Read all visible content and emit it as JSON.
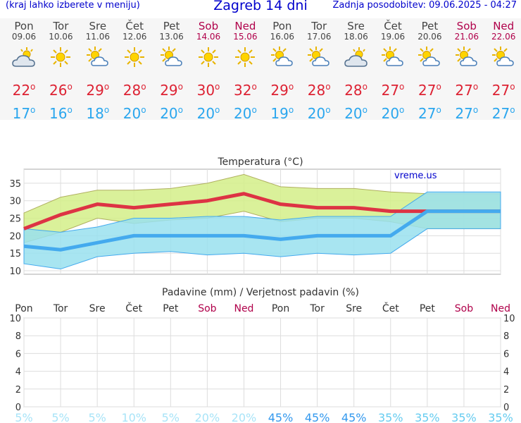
{
  "header": {
    "menu_hint": "(kraj lahko izberete v meniju)",
    "title": "Zagreb 14 dni",
    "updated": "Zadnja posodobitev: 09.06.2025 - 04:27"
  },
  "days": [
    {
      "name": "Pon",
      "date": "09.06",
      "weekend": false,
      "icon": "partly-cloudy-icon",
      "tmax": "22",
      "tmin": "17"
    },
    {
      "name": "Tor",
      "date": "10.06",
      "weekend": false,
      "icon": "sun-icon",
      "tmax": "26",
      "tmin": "16"
    },
    {
      "name": "Sre",
      "date": "11.06",
      "weekend": false,
      "icon": "sun-cloud-icon",
      "tmax": "29",
      "tmin": "18"
    },
    {
      "name": "Čet",
      "date": "12.06",
      "weekend": false,
      "icon": "sun-icon",
      "tmax": "28",
      "tmin": "20"
    },
    {
      "name": "Pet",
      "date": "13.06",
      "weekend": false,
      "icon": "sun-cloud-icon",
      "tmax": "29",
      "tmin": "20"
    },
    {
      "name": "Sob",
      "date": "14.06",
      "weekend": true,
      "icon": "sun-icon",
      "tmax": "30",
      "tmin": "20"
    },
    {
      "name": "Ned",
      "date": "15.06",
      "weekend": true,
      "icon": "sun-icon",
      "tmax": "32",
      "tmin": "20"
    },
    {
      "name": "Pon",
      "date": "16.06",
      "weekend": false,
      "icon": "sun-cloud-icon",
      "tmax": "29",
      "tmin": "19"
    },
    {
      "name": "Tor",
      "date": "17.06",
      "weekend": false,
      "icon": "sun-cloud-icon",
      "tmax": "28",
      "tmin": "20"
    },
    {
      "name": "Sre",
      "date": "18.06",
      "weekend": false,
      "icon": "partly-cloudy-icon",
      "tmax": "28",
      "tmin": "20"
    },
    {
      "name": "Čet",
      "date": "19.06",
      "weekend": false,
      "icon": "sun-cloud-icon",
      "tmax": "27",
      "tmin": "20"
    },
    {
      "name": "Pet",
      "date": "20.06",
      "weekend": false,
      "icon": "sun-cloud-icon",
      "tmax": "27",
      "tmin": "27"
    },
    {
      "name": "Sob",
      "date": "21.06",
      "weekend": true,
      "icon": "sun-cloud-icon",
      "tmax": "27",
      "tmin": "27"
    },
    {
      "name": "Ned",
      "date": "22.06",
      "weekend": true,
      "icon": "sun-cloud-icon",
      "tmax": "27",
      "tmin": "27"
    }
  ],
  "degree_symbol": "o",
  "colors": {
    "max": "#dd3344",
    "min": "#44aaee",
    "max_band": "#d4ee88",
    "min_band": "#99e0ee",
    "overlap": "#80cc88",
    "weekend": "#b0004a",
    "title": "#0000cc"
  },
  "chart_data": [
    {
      "type": "area",
      "title": "Temperatura (°C)",
      "watermark": "vreme.us",
      "ylim": [
        9,
        39
      ],
      "yticks": [
        10,
        15,
        20,
        25,
        30,
        35
      ],
      "grid": true,
      "x": [
        1,
        2,
        3,
        4,
        5,
        6,
        7,
        8,
        9,
        10,
        11,
        12,
        13,
        14
      ],
      "series": [
        {
          "role": "max-line",
          "values": [
            22,
            26,
            29,
            28,
            29,
            30,
            32,
            29,
            28,
            28,
            27,
            27,
            27,
            27
          ]
        },
        {
          "role": "min-line",
          "values": [
            17,
            16,
            18,
            20,
            20,
            20,
            20,
            19,
            20,
            20,
            20,
            27,
            27,
            27
          ]
        },
        {
          "role": "max-band-upper",
          "values": [
            26.5,
            31,
            33,
            33,
            33.5,
            35,
            37.5,
            34,
            33.5,
            33.5,
            32.5,
            32,
            32,
            32
          ]
        },
        {
          "role": "max-band-lower",
          "values": [
            18,
            21,
            25,
            23.5,
            24.5,
            25,
            27,
            24,
            25,
            25,
            24,
            22,
            22,
            22
          ]
        },
        {
          "role": "min-band-upper",
          "values": [
            22,
            21,
            22.5,
            25,
            25,
            25.5,
            25.5,
            24.5,
            25.5,
            25.5,
            25.5,
            32.5,
            32.5,
            32.5
          ]
        },
        {
          "role": "min-band-lower",
          "values": [
            12,
            10.5,
            14,
            15,
            15.5,
            14.5,
            15,
            14,
            15,
            14.5,
            15,
            22,
            22,
            22
          ]
        }
      ]
    },
    {
      "type": "bar",
      "title": "Padavine (mm) / Verjetnost padavin (%)",
      "ylim": [
        0,
        10
      ],
      "yticks": [
        0,
        2,
        4,
        6,
        8,
        10
      ],
      "grid": true,
      "categories": [
        "Pon",
        "Tor",
        "Sre",
        "Čet",
        "Pet",
        "Sob",
        "Ned",
        "Pon",
        "Tor",
        "Sre",
        "Čet",
        "Pet",
        "Sob",
        "Ned"
      ],
      "precipitation_mm": [
        0,
        0,
        0,
        0,
        0,
        0,
        0,
        0,
        0,
        0,
        0,
        0,
        0,
        0
      ],
      "probability_labels": [
        "5%",
        "5%",
        "5%",
        "10%",
        "5%",
        "20%",
        "20%",
        "45%",
        "45%",
        "45%",
        "35%",
        "35%",
        "35%",
        "35%"
      ],
      "probability_values": [
        5,
        5,
        5,
        10,
        5,
        20,
        20,
        45,
        45,
        45,
        35,
        35,
        35,
        35
      ]
    }
  ]
}
